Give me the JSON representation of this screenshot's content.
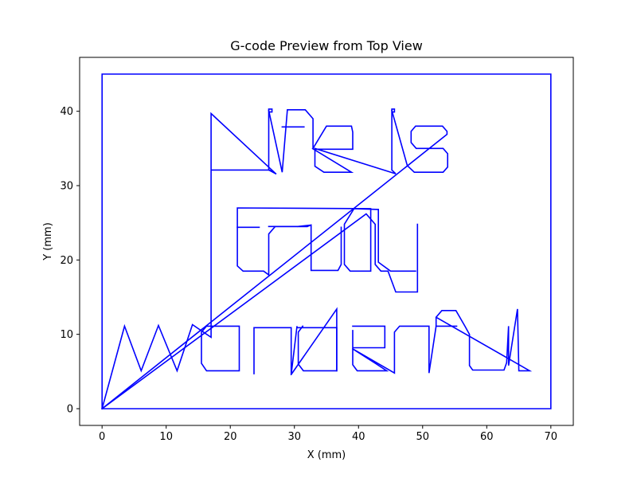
{
  "chart_data": {
    "type": "line",
    "title": "G-code Preview from Top View",
    "xlabel": "X (mm)",
    "ylabel": "Y (mm)",
    "xlim": [
      -3.5,
      73.5
    ],
    "ylim": [
      -2.25,
      47.25
    ],
    "xticks": [
      0,
      10,
      20,
      30,
      40,
      50,
      60,
      70
    ],
    "yticks": [
      0,
      10,
      20,
      30,
      40
    ],
    "grid": false,
    "line_color": "#0000ff",
    "series": [
      {
        "segments": [
          [
            [
              0,
              0
            ],
            [
              0,
              45
            ],
            [
              70,
              45
            ],
            [
              70,
              0
            ],
            [
              0,
              0
            ]
          ],
          [
            [
              0,
              0
            ],
            [
              3.5,
              11.1
            ],
            [
              6.1,
              5.1
            ],
            [
              8.8,
              11.2
            ],
            [
              11.7,
              5.1
            ],
            [
              14.1,
              11.3
            ],
            [
              17,
              9.6
            ],
            [
              17,
              39.7
            ],
            [
              27.1,
              31.6
            ],
            [
              26.1,
              32.1
            ],
            [
              17,
              32.1
            ]
          ],
          [
            [
              27.1,
              31.6
            ],
            [
              26,
              32.1
            ],
            [
              26,
              40.3
            ],
            [
              26.5,
              40.3
            ],
            [
              26.5,
              39.9
            ],
            [
              26,
              39.9
            ]
          ],
          [
            [
              26,
              40.1
            ],
            [
              28.1,
              31.8
            ],
            [
              28.9,
              40.2
            ],
            [
              31.7,
              40.2
            ],
            [
              32.9,
              39
            ],
            [
              32.9,
              35
            ]
          ],
          [
            [
              28.1,
              37.9
            ],
            [
              31.5,
              37.9
            ]
          ],
          [
            [
              32.9,
              35
            ],
            [
              35,
              38.0
            ],
            [
              38.9,
              38.0
            ],
            [
              39.1,
              37.2
            ],
            [
              39.1,
              34.9
            ],
            [
              33,
              34.9
            ],
            [
              38.9,
              31.8
            ],
            [
              34.6,
              31.8
            ],
            [
              33.2,
              32.6
            ],
            [
              33.2,
              35
            ],
            [
              45.8,
              31.6
            ],
            [
              45.2,
              32.1
            ],
            [
              45.2,
              40.3
            ],
            [
              45.6,
              40.3
            ],
            [
              45.6,
              39.9
            ],
            [
              45.2,
              39.9
            ]
          ],
          [
            [
              45.2,
              40.1
            ],
            [
              47.6,
              32.7
            ],
            [
              48.7,
              31.8
            ],
            [
              53.2,
              31.8
            ],
            [
              53.9,
              32.5
            ],
            [
              53.9,
              34.3
            ],
            [
              53.2,
              35
            ],
            [
              49,
              35
            ],
            [
              48.2,
              35.8
            ],
            [
              48.2,
              37.3
            ],
            [
              48.9,
              38
            ],
            [
              53.1,
              38
            ],
            [
              53.8,
              37.3
            ],
            [
              53.8,
              36.9
            ],
            [
              0,
              0
            ]
          ],
          [
            [
              0,
              0
            ],
            [
              41.2,
              26.2
            ],
            [
              42.6,
              24.8
            ],
            [
              42.6,
              19.4
            ],
            [
              43.5,
              18.5
            ],
            [
              44.6,
              18.5
            ],
            [
              45.8,
              15.7
            ],
            [
              49.2,
              15.7
            ],
            [
              49.2,
              24.8
            ]
          ],
          [
            [
              48.9,
              18.5
            ],
            [
              45,
              18.5
            ],
            [
              43.1,
              19.7
            ],
            [
              43.1,
              26.8
            ],
            [
              39.3,
              26.9
            ],
            [
              37.8,
              24.8
            ],
            [
              37.8,
              19.4
            ],
            [
              38.7,
              18.5
            ],
            [
              41.9,
              18.5
            ],
            [
              41.9,
              26.9
            ],
            [
              21.1,
              27
            ],
            [
              21.1,
              19.2
            ],
            [
              22,
              18.5
            ],
            [
              25.2,
              18.5
            ],
            [
              26,
              18
            ],
            [
              26,
              23.5
            ],
            [
              27,
              24.5
            ],
            [
              32,
              24.5
            ],
            [
              32.6,
              24.7
            ],
            [
              32.6,
              18.6
            ],
            [
              34,
              18.6
            ],
            [
              36.8,
              18.6
            ],
            [
              37.3,
              19.4
            ],
            [
              37.3,
              24.4
            ]
          ],
          [
            [
              21.1,
              24.4
            ],
            [
              24.5,
              24.4
            ]
          ],
          [
            [
              32,
              24.5
            ],
            [
              26,
              24.5
            ]
          ],
          [
            [
              32.6,
              24.7
            ],
            [
              30.5,
              24.5
            ]
          ],
          [
            [
              16.3,
              11.1
            ],
            [
              21.4,
              11.1
            ],
            [
              21.4,
              5.1
            ],
            [
              16.3,
              5.1
            ],
            [
              15.5,
              6.1
            ],
            [
              15.5,
              10.3
            ],
            [
              16.3,
              11.1
            ]
          ],
          [
            [
              23.7,
              4.7
            ],
            [
              23.7,
              10.9
            ],
            [
              29.5,
              10.9
            ],
            [
              29.5,
              4.6
            ],
            [
              30.4,
              11.1
            ],
            [
              30.4,
              10.9
            ],
            [
              36.6,
              10.9
            ],
            [
              36.6,
              5.1
            ],
            [
              31.4,
              5.1
            ],
            [
              30.6,
              6
            ],
            [
              30.6,
              10.3
            ],
            [
              31.3,
              11.1
            ]
          ],
          [
            [
              36.6,
              5.1
            ],
            [
              36.6,
              13.4
            ],
            [
              29.5,
              4.6
            ]
          ],
          [
            [
              39.1,
              11.1
            ],
            [
              44.1,
              11.1
            ],
            [
              44.1,
              8.2
            ],
            [
              39.1,
              8.2
            ],
            [
              39.1,
              10.6
            ],
            [
              39.1,
              5.9
            ],
            [
              39.8,
              5.1
            ],
            [
              44.4,
              5.1
            ],
            [
              42.8,
              6
            ],
            [
              39,
              8.1
            ],
            [
              45.6,
              4.8
            ],
            [
              45.6,
              10.3
            ],
            [
              46.4,
              11.1
            ],
            [
              51,
              11.1
            ],
            [
              51,
              4.8
            ],
            [
              52.1,
              11.1
            ],
            [
              52.1,
              12.3
            ],
            [
              53,
              13.2
            ],
            [
              55.2,
              13.2
            ],
            [
              56.6,
              11.1
            ],
            [
              57.3,
              10
            ],
            [
              57.3,
              5.8
            ],
            [
              57.8,
              5.2
            ],
            [
              62.7,
              5.2
            ],
            [
              63.1,
              6.2
            ],
            [
              63.4,
              11.1
            ],
            [
              63.4,
              5.8
            ],
            [
              64.8,
              13.4
            ],
            [
              65,
              5.1
            ],
            [
              66.7,
              5.1
            ],
            [
              52.1,
              12.3
            ]
          ],
          [
            [
              52.1,
              11.1
            ],
            [
              55.3,
              11.1
            ]
          ]
        ]
      }
    ]
  }
}
